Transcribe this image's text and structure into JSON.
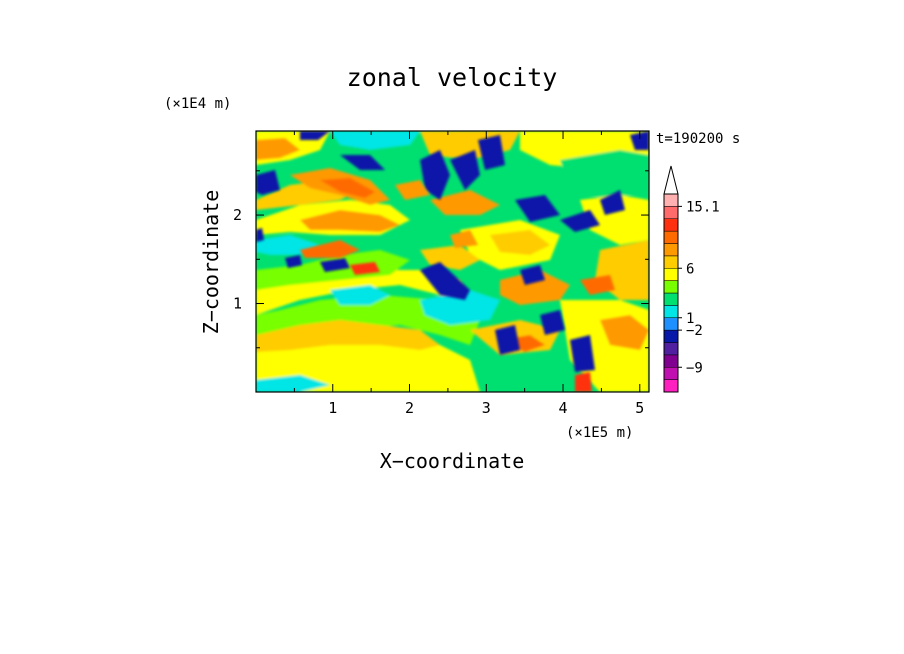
{
  "chart_data": {
    "type": "heatmap",
    "title": "zonal velocity",
    "xlabel": "X−coordinate",
    "ylabel": "Z−coordinate",
    "x_scale_label": "(×1E5 m)",
    "y_scale_label": "(×1E4 m)",
    "time_label": "t=190200 s",
    "xlim": [
      0,
      5.12
    ],
    "ylim": [
      0,
      2.95
    ],
    "x_ticks": [
      "1",
      "2",
      "3",
      "4",
      "5"
    ],
    "y_ticks": [
      "1",
      "2"
    ],
    "grid": false,
    "colorbar": {
      "levels": [
        {
          "color": "#ff20c0"
        },
        {
          "color": "#c010b0"
        },
        {
          "color": "#800090"
        },
        {
          "color": "#5020a0"
        },
        {
          "color": "#0818a8"
        },
        {
          "color": "#1e90ff"
        },
        {
          "color": "#00e5e5"
        },
        {
          "color": "#00e070"
        },
        {
          "color": "#78ff00"
        },
        {
          "color": "#ffff00"
        },
        {
          "color": "#ffcc00"
        },
        {
          "color": "#ff9900"
        },
        {
          "color": "#ff6a00"
        },
        {
          "color": "#ff3010"
        },
        {
          "color": "#ff6a6a"
        },
        {
          "color": "#ffb0b0"
        }
      ],
      "tick_labels": [
        "15.1",
        "6",
        "1",
        "−2",
        "−9"
      ],
      "extend": "max"
    }
  }
}
